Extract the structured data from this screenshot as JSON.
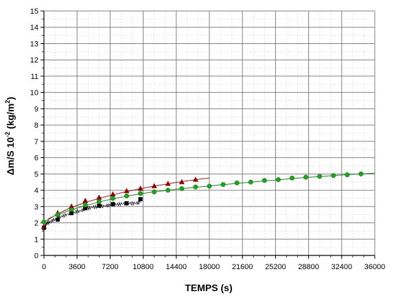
{
  "chart_data": {
    "type": "scatter",
    "title": "",
    "xlabel": "TEMPS (s)",
    "ylabel_main": "Δm/S 10",
    "ylabel_exp": "-2",
    "ylabel_unit_open": " (kg/m",
    "ylabel_unit_exp": "2",
    "ylabel_unit_close": ")",
    "xlim": [
      0,
      36000
    ],
    "ylim": [
      0,
      15
    ],
    "x_ticks": [
      0,
      3600,
      7200,
      10800,
      14400,
      18000,
      21600,
      25200,
      28800,
      32400,
      36000
    ],
    "x_tick_labels": [
      "0",
      "3600",
      "7200",
      "10800",
      "14400",
      "18000",
      "21600",
      "25200",
      "28800",
      "32400",
      "36000"
    ],
    "y_ticks": [
      0,
      1,
      2,
      3,
      4,
      5,
      6,
      7,
      8,
      9,
      10,
      11,
      12,
      13,
      14,
      15
    ],
    "y_tick_labels": [
      "0",
      "1",
      "2",
      "3",
      "4",
      "5",
      "6",
      "7",
      "8",
      "9",
      "10",
      "11",
      "12",
      "13",
      "14",
      "15"
    ],
    "grid": true,
    "background_color": "#ffffff",
    "grid_color": "#808080",
    "series": [
      {
        "marker": "square",
        "color": "#000000",
        "points": [
          [
            0,
            1.7
          ],
          [
            1500,
            2.2
          ],
          [
            3000,
            2.6
          ],
          [
            4500,
            2.9
          ],
          [
            6000,
            3.05
          ],
          [
            7500,
            3.15
          ],
          [
            9000,
            3.2
          ],
          [
            10500,
            3.45
          ]
        ]
      },
      {
        "marker": "triangle",
        "color": "#8b0000",
        "line_color": "#8b1a1a",
        "points": [
          [
            0,
            1.75
          ],
          [
            1500,
            2.6
          ],
          [
            3000,
            3.0
          ],
          [
            4500,
            3.35
          ],
          [
            6000,
            3.55
          ],
          [
            7500,
            3.75
          ],
          [
            9000,
            3.95
          ],
          [
            10500,
            4.1
          ],
          [
            12000,
            4.25
          ],
          [
            13500,
            4.4
          ],
          [
            15000,
            4.5
          ],
          [
            16500,
            4.65
          ]
        ],
        "fit": [
          [
            0,
            1.75
          ],
          [
            600,
            2.25
          ],
          [
            1500,
            2.55
          ],
          [
            3000,
            2.95
          ],
          [
            4500,
            3.25
          ],
          [
            6000,
            3.5
          ],
          [
            7500,
            3.72
          ],
          [
            9000,
            3.92
          ],
          [
            10500,
            4.1
          ],
          [
            12000,
            4.25
          ],
          [
            13500,
            4.4
          ],
          [
            15000,
            4.53
          ],
          [
            16500,
            4.65
          ],
          [
            18000,
            4.75
          ]
        ]
      },
      {
        "marker": "circle",
        "color": "#22a022",
        "line_color": "#1e7f1e",
        "points": [
          [
            0,
            2.05
          ],
          [
            1500,
            2.5
          ],
          [
            3000,
            2.8
          ],
          [
            4500,
            3.1
          ],
          [
            6000,
            3.3
          ],
          [
            7500,
            3.5
          ],
          [
            9000,
            3.65
          ],
          [
            10500,
            3.8
          ],
          [
            12000,
            3.9
          ],
          [
            13500,
            4.0
          ],
          [
            15000,
            4.1
          ],
          [
            16500,
            4.2
          ],
          [
            18000,
            4.25
          ],
          [
            19500,
            4.35
          ],
          [
            21000,
            4.45
          ],
          [
            22500,
            4.5
          ],
          [
            24000,
            4.6
          ],
          [
            25500,
            4.65
          ],
          [
            27000,
            4.75
          ],
          [
            28500,
            4.8
          ],
          [
            30000,
            4.85
          ],
          [
            31500,
            4.9
          ],
          [
            33000,
            4.95
          ],
          [
            34500,
            5.0
          ]
        ],
        "fit": [
          [
            0,
            2.0
          ],
          [
            600,
            2.3
          ],
          [
            1500,
            2.5
          ],
          [
            3000,
            2.8
          ],
          [
            4500,
            3.05
          ],
          [
            6000,
            3.28
          ],
          [
            7500,
            3.47
          ],
          [
            9000,
            3.63
          ],
          [
            10500,
            3.78
          ],
          [
            12000,
            3.9
          ],
          [
            13500,
            4.0
          ],
          [
            15000,
            4.1
          ],
          [
            16500,
            4.18
          ],
          [
            18000,
            4.26
          ],
          [
            20000,
            4.37
          ],
          [
            22000,
            4.47
          ],
          [
            24000,
            4.57
          ],
          [
            26000,
            4.67
          ],
          [
            28000,
            4.76
          ],
          [
            30000,
            4.84
          ],
          [
            32000,
            4.92
          ],
          [
            34000,
            4.99
          ],
          [
            36000,
            5.05
          ]
        ]
      },
      {
        "marker": "none",
        "color": "#000000",
        "line_style": "noisy",
        "points": [
          [
            0,
            1.6
          ],
          [
            300,
            1.95
          ],
          [
            800,
            2.1
          ],
          [
            1500,
            2.3
          ],
          [
            2200,
            2.45
          ],
          [
            3000,
            2.6
          ],
          [
            3800,
            2.7
          ],
          [
            4500,
            2.85
          ],
          [
            5200,
            2.95
          ],
          [
            6000,
            3.0
          ],
          [
            6800,
            3.05
          ],
          [
            7500,
            3.1
          ],
          [
            8200,
            3.15
          ],
          [
            9000,
            3.2
          ],
          [
            9800,
            3.2
          ],
          [
            10500,
            3.25
          ]
        ]
      }
    ]
  }
}
